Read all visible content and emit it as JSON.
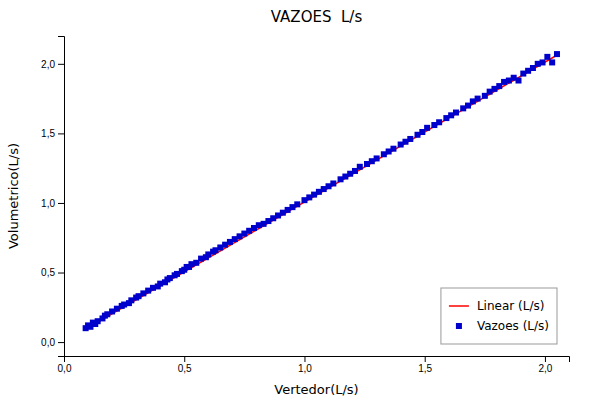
{
  "chart_data": {
    "type": "scatter",
    "title": "VAZOES  L/s",
    "xlabel": "Vertedor(L/s)",
    "ylabel": "Volumetrico(L/s)",
    "xlim": [
      0.0,
      2.1
    ],
    "ylim": [
      -0.1,
      2.2
    ],
    "xticks": [
      {
        "value": 0.0,
        "label": "0,0"
      },
      {
        "value": 0.5,
        "label": "0,5"
      },
      {
        "value": 1.0,
        "label": "1,0"
      },
      {
        "value": 1.5,
        "label": "1,5"
      },
      {
        "value": 2.0,
        "label": "2,0"
      }
    ],
    "yticks": [
      {
        "value": 0.0,
        "label": "0,0"
      },
      {
        "value": 0.5,
        "label": "0,5"
      },
      {
        "value": 1.0,
        "label": "1,0"
      },
      {
        "value": 1.5,
        "label": "1,5"
      },
      {
        "value": 2.0,
        "label": "2,0"
      }
    ],
    "grid": false,
    "legend": "lower right",
    "series": [
      {
        "name": "Linear (L/s)",
        "type": "line",
        "color": "#ff0000",
        "line_style": "solid",
        "x": [
          0.09,
          2.06
        ],
        "values": [
          0.09245,
          2.0723
        ]
      },
      {
        "name": "Vazoes (L/s)",
        "type": "scatter",
        "color": "#0000cc",
        "marker": "square",
        "x": [
          0.09,
          0.1,
          0.11,
          0.12,
          0.13,
          0.14,
          0.16,
          0.17,
          0.18,
          0.2,
          0.22,
          0.24,
          0.25,
          0.27,
          0.28,
          0.3,
          0.31,
          0.33,
          0.35,
          0.37,
          0.39,
          0.4,
          0.42,
          0.43,
          0.44,
          0.46,
          0.47,
          0.49,
          0.5,
          0.51,
          0.52,
          0.53,
          0.55,
          0.57,
          0.59,
          0.6,
          0.62,
          0.63,
          0.65,
          0.67,
          0.69,
          0.71,
          0.73,
          0.75,
          0.77,
          0.79,
          0.81,
          0.83,
          0.85,
          0.87,
          0.89,
          0.91,
          0.93,
          0.95,
          0.97,
          1.0,
          1.02,
          1.04,
          1.06,
          1.08,
          1.1,
          1.12,
          1.15,
          1.17,
          1.19,
          1.21,
          1.23,
          1.26,
          1.28,
          1.3,
          1.33,
          1.35,
          1.37,
          1.4,
          1.42,
          1.44,
          1.47,
          1.49,
          1.51,
          1.54,
          1.56,
          1.59,
          1.61,
          1.63,
          1.66,
          1.68,
          1.7,
          1.72,
          1.75,
          1.77,
          1.79,
          1.81,
          1.83,
          1.85,
          1.87,
          1.89,
          1.91,
          1.93,
          1.95,
          1.97,
          1.99,
          2.01,
          2.03,
          2.05
        ],
        "values": [
          0.1,
          0.12,
          0.11,
          0.14,
          0.13,
          0.15,
          0.17,
          0.19,
          0.2,
          0.22,
          0.24,
          0.26,
          0.27,
          0.28,
          0.3,
          0.32,
          0.33,
          0.35,
          0.37,
          0.39,
          0.4,
          0.42,
          0.43,
          0.45,
          0.46,
          0.48,
          0.49,
          0.51,
          0.52,
          0.54,
          0.54,
          0.56,
          0.57,
          0.6,
          0.61,
          0.63,
          0.65,
          0.66,
          0.68,
          0.7,
          0.72,
          0.74,
          0.76,
          0.78,
          0.8,
          0.82,
          0.84,
          0.85,
          0.87,
          0.89,
          0.91,
          0.93,
          0.95,
          0.97,
          0.99,
          1.02,
          1.04,
          1.06,
          1.08,
          1.1,
          1.12,
          1.14,
          1.17,
          1.19,
          1.21,
          1.23,
          1.26,
          1.28,
          1.3,
          1.32,
          1.35,
          1.37,
          1.39,
          1.42,
          1.44,
          1.46,
          1.49,
          1.51,
          1.54,
          1.56,
          1.58,
          1.61,
          1.63,
          1.65,
          1.68,
          1.7,
          1.73,
          1.75,
          1.77,
          1.8,
          1.82,
          1.84,
          1.87,
          1.88,
          1.9,
          1.88,
          1.93,
          1.95,
          1.97,
          2.0,
          2.01,
          2.05,
          2.01,
          2.07
        ]
      }
    ]
  }
}
